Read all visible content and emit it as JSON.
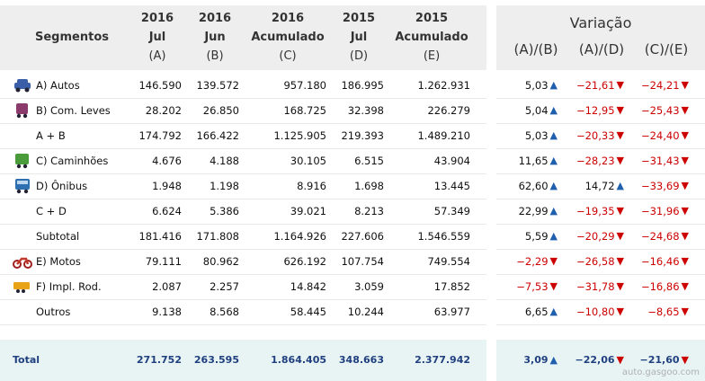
{
  "left_header": {
    "segmentos": "Segmentos",
    "cols": [
      {
        "l1": "2016",
        "l2": "Jul",
        "l3": "(A)"
      },
      {
        "l1": "2016",
        "l2": "Jun",
        "l3": "(B)"
      },
      {
        "l1": "2016",
        "l2": "Acumulado",
        "l3": "(C)"
      },
      {
        "l1": "2015",
        "l2": "Jul",
        "l3": "(D)"
      },
      {
        "l1": "2015",
        "l2": "Acumulado",
        "l3": "(E)"
      }
    ]
  },
  "right_header": {
    "title": "Variação",
    "cols": [
      "(A)/(B)",
      "(A)/(D)",
      "(C)/(E)"
    ]
  },
  "rows": [
    {
      "label": "A) Autos",
      "icon": "car-icon",
      "vals": [
        "146.590",
        "139.572",
        "957.180",
        "186.995",
        "1.262.931"
      ],
      "var": [
        {
          "v": "5,03",
          "d": "up"
        },
        {
          "v": "−21,61",
          "d": "down"
        },
        {
          "v": "−24,21",
          "d": "down"
        }
      ]
    },
    {
      "label": "B) Com. Leves",
      "icon": "van-icon",
      "vals": [
        "28.202",
        "26.850",
        "168.725",
        "32.398",
        "226.279"
      ],
      "var": [
        {
          "v": "5,04",
          "d": "up"
        },
        {
          "v": "−12,95",
          "d": "down"
        },
        {
          "v": "−25,43",
          "d": "down"
        }
      ]
    },
    {
      "label": "A + B",
      "icon": "",
      "vals": [
        "174.792",
        "166.422",
        "1.125.905",
        "219.393",
        "1.489.210"
      ],
      "var": [
        {
          "v": "5,03",
          "d": "up"
        },
        {
          "v": "−20,33",
          "d": "down"
        },
        {
          "v": "−24,40",
          "d": "down"
        }
      ]
    },
    {
      "label": "C) Caminhões",
      "icon": "truck-icon",
      "vals": [
        "4.676",
        "4.188",
        "30.105",
        "6.515",
        "43.904"
      ],
      "var": [
        {
          "v": "11,65",
          "d": "up"
        },
        {
          "v": "−28,23",
          "d": "down"
        },
        {
          "v": "−31,43",
          "d": "down"
        }
      ]
    },
    {
      "label": "D) Ônibus",
      "icon": "bus-icon",
      "vals": [
        "1.948",
        "1.198",
        "8.916",
        "1.698",
        "13.445"
      ],
      "var": [
        {
          "v": "62,60",
          "d": "up"
        },
        {
          "v": "14,72",
          "d": "up"
        },
        {
          "v": "−33,69",
          "d": "down"
        }
      ]
    },
    {
      "label": "C + D",
      "icon": "",
      "vals": [
        "6.624",
        "5.386",
        "39.021",
        "8.213",
        "57.349"
      ],
      "var": [
        {
          "v": "22,99",
          "d": "up"
        },
        {
          "v": "−19,35",
          "d": "down"
        },
        {
          "v": "−31,96",
          "d": "down"
        }
      ]
    },
    {
      "label": "Subtotal",
      "icon": "",
      "vals": [
        "181.416",
        "171.808",
        "1.164.926",
        "227.606",
        "1.546.559"
      ],
      "var": [
        {
          "v": "5,59",
          "d": "up"
        },
        {
          "v": "−20,29",
          "d": "down"
        },
        {
          "v": "−24,68",
          "d": "down"
        }
      ]
    },
    {
      "label": "E) Motos",
      "icon": "motorcycle-icon",
      "vals": [
        "79.111",
        "80.962",
        "626.192",
        "107.754",
        "749.554"
      ],
      "var": [
        {
          "v": "−2,29",
          "d": "down"
        },
        {
          "v": "−26,58",
          "d": "down"
        },
        {
          "v": "−16,46",
          "d": "down"
        }
      ]
    },
    {
      "label": "F) Impl. Rod.",
      "icon": "trailer-icon",
      "vals": [
        "2.087",
        "2.257",
        "14.842",
        "3.059",
        "17.852"
      ],
      "var": [
        {
          "v": "−7,53",
          "d": "down"
        },
        {
          "v": "−31,78",
          "d": "down"
        },
        {
          "v": "−16,86",
          "d": "down"
        }
      ]
    },
    {
      "label": "Outros",
      "icon": "",
      "vals": [
        "9.138",
        "8.568",
        "58.445",
        "10.244",
        "63.977"
      ],
      "var": [
        {
          "v": "6,65",
          "d": "up"
        },
        {
          "v": "−10,80",
          "d": "down"
        },
        {
          "v": "−8,65",
          "d": "down"
        }
      ]
    }
  ],
  "total": {
    "label": "Total",
    "vals": [
      "271.752",
      "263.595",
      "1.864.405",
      "348.663",
      "2.377.942"
    ],
    "var": [
      {
        "v": "3,09",
        "d": "up"
      },
      {
        "v": "−22,06",
        "d": "down"
      },
      {
        "v": "−21,60",
        "d": "down"
      }
    ]
  },
  "watermark": "auto.gasgoo.com",
  "colors": {
    "up": "#1f5fae",
    "down": "#cc0000",
    "header_bg": "#eeeeee",
    "total_bg": "#e8f4f4"
  }
}
